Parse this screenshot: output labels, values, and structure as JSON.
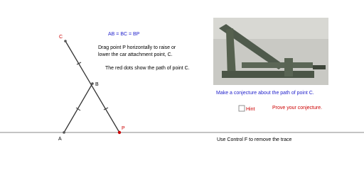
{
  "points": {
    "C": "C",
    "B": "B",
    "A": "A",
    "P": "P"
  },
  "equation": "AB = BC = BP",
  "instructions": [
    "Drag point P horizontally to raise or",
    "lower the car attachment point, C."
  ],
  "trace_note": "The red dots show the path of point C.",
  "conjecture": "Make a conjecture about the path of point C.",
  "hint": "Hint",
  "prove": "Prove your conjecture.",
  "footer": "Use Control F to remove the trace"
}
